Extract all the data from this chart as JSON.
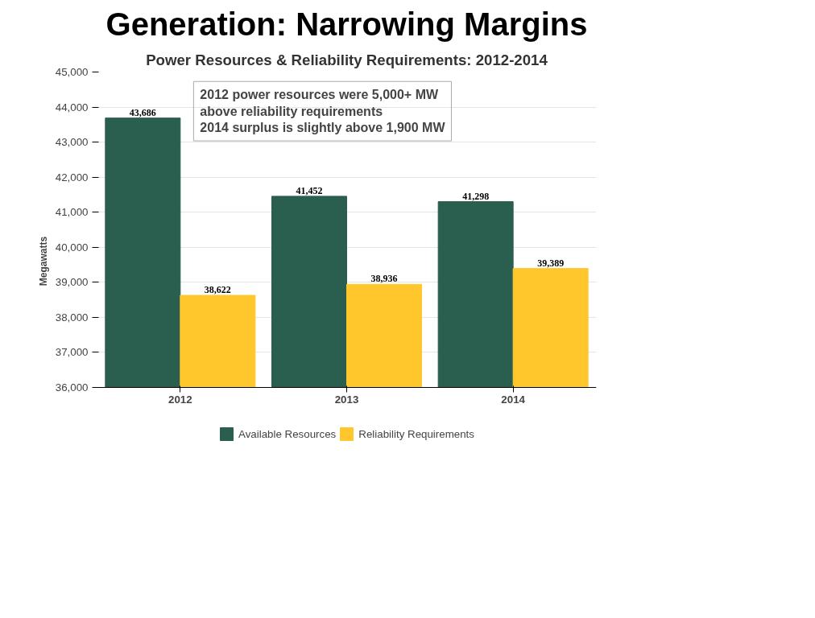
{
  "chart_data": {
    "type": "bar",
    "title": "Generation: Narrowing Margins",
    "subtitle": "Power Resources & Reliability Requirements: 2012-2014",
    "ylabel": "Megawatts",
    "categories": [
      "2012",
      "2013",
      "2014"
    ],
    "series": [
      {
        "name": "Available Resources",
        "color": "#2a5e4f",
        "values": [
          43686,
          41452,
          41298
        ],
        "value_labels": [
          "43,686",
          "41,452",
          "41,298"
        ]
      },
      {
        "name": "Reliability Requirements",
        "color": "#ffc72c",
        "values": [
          38622,
          38936,
          39389
        ],
        "value_labels": [
          "38,622",
          "38,936",
          "39,389"
        ]
      }
    ],
    "ylim": [
      36000,
      45000
    ],
    "yticks": [
      {
        "value": 36000,
        "label": "36,000"
      },
      {
        "value": 37000,
        "label": "37,000"
      },
      {
        "value": 38000,
        "label": "38,000"
      },
      {
        "value": 39000,
        "label": "39,000"
      },
      {
        "value": 40000,
        "label": "40,000"
      },
      {
        "value": 41000,
        "label": "41,000"
      },
      {
        "value": 42000,
        "label": "42,000"
      },
      {
        "value": 43000,
        "label": "43,000"
      },
      {
        "value": 44000,
        "label": "44,000"
      },
      {
        "value": 45000,
        "label": "45,000"
      }
    ],
    "grid": "y",
    "legend": "bottom",
    "annotations": [
      "2012 power resources were 5,000+ MW above reliability requirements",
      "2014 surplus is slightly above 1,900 MW"
    ]
  }
}
